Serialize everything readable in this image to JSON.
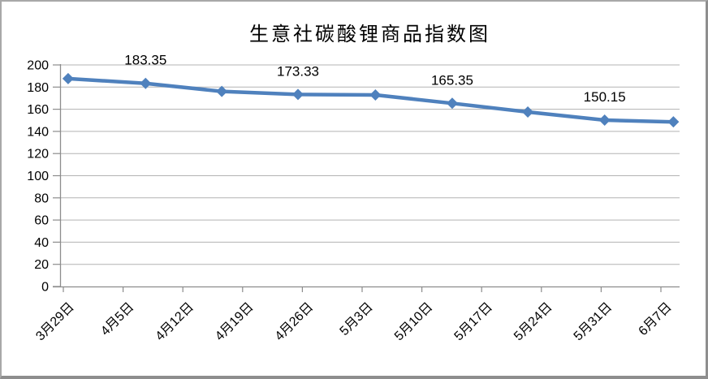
{
  "chart_data": {
    "type": "line",
    "title": "生意社碳酸锂商品指数图",
    "x_labels": [
      "3月29日",
      "4月5日",
      "4月12日",
      "4月19日",
      "4月26日",
      "5月3日",
      "5月10日",
      "5月17日",
      "5月24日",
      "5月31日",
      "6月7日"
    ],
    "y_tick_labels": [
      "0",
      "20",
      "40",
      "60",
      "80",
      "100",
      "120",
      "140",
      "160",
      "180",
      "200"
    ],
    "ylim": [
      0,
      200
    ],
    "y_tick_step": 20,
    "grid": "horizontal",
    "legend": "none",
    "marker": "diamond",
    "series": [
      {
        "values": [
          187.6,
          183.35,
          176.1,
          173.33,
          172.9,
          165.35,
          157.5,
          150.15,
          148.6
        ],
        "data_labels": [
          null,
          "183.35",
          null,
          "173.33",
          null,
          "165.35",
          null,
          "150.15",
          null
        ],
        "x_positions_frac": [
          0.013,
          0.138,
          0.261,
          0.384,
          0.509,
          0.633,
          0.755,
          0.879,
          0.99
        ]
      }
    ],
    "colors": {
      "line": "#4F81BD",
      "gridline": "#b3b3b3",
      "axis": "#8c8c8c",
      "text": "#000000"
    }
  }
}
